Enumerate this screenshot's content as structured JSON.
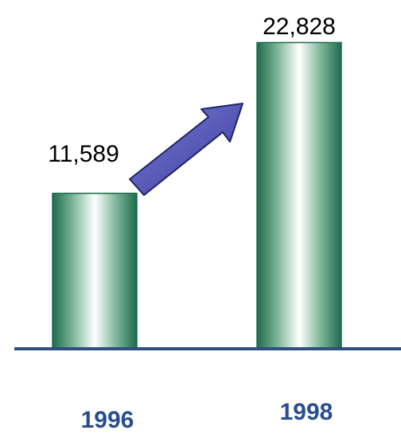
{
  "chart_data": {
    "type": "bar",
    "categories": [
      "1996",
      "1998"
    ],
    "values": [
      11589,
      22828
    ],
    "value_labels": [
      "11,589",
      "22,828"
    ],
    "title": "",
    "xlabel": "",
    "ylabel": "",
    "ylim": [
      0,
      26000
    ],
    "grid": false,
    "legend": "none",
    "annotations": [
      "upward-arrow-from-1996-to-1998"
    ]
  },
  "colors": {
    "bar_edge": "#1f6b4f",
    "bar_center": "#ffffff",
    "bar_mid": "#7fb89b",
    "axis": "#2f4f7f",
    "category_text": "#2a4d8f",
    "arrow_fill": "#4a4aa8",
    "arrow_stroke": "#1e2566"
  },
  "icons": {
    "arrow": "trend-up-arrow-icon"
  }
}
